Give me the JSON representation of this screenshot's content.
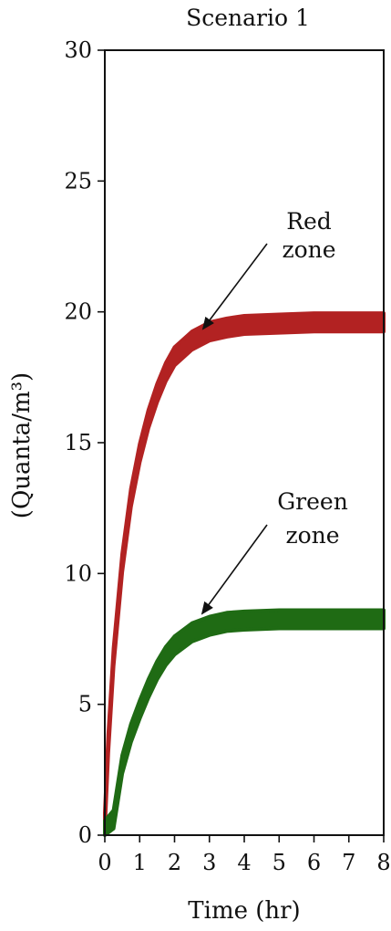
{
  "chart_data": {
    "type": "line",
    "title": "Scenario 1",
    "xlabel": "Time (hr)",
    "ylabel": "(Quanta/m³)",
    "xlim": [
      0,
      8
    ],
    "ylim": [
      0,
      30
    ],
    "x_ticks": [
      "0",
      "1",
      "2",
      "3",
      "4",
      "5",
      "6",
      "7",
      "8"
    ],
    "y_ticks": [
      "0",
      "5",
      "10",
      "15",
      "20",
      "25",
      "30"
    ],
    "grid": false,
    "series": [
      {
        "color": "#b22222",
        "x": [
          0,
          0.1,
          0.25,
          0.5,
          0.75,
          1.0,
          1.25,
          1.5,
          1.75,
          2.0,
          2.5,
          3.0,
          3.5,
          4.0,
          5.0,
          6.0,
          7.0,
          8.0
        ],
        "y": [
          0.5,
          3.5,
          6.8,
          10.4,
          12.9,
          14.6,
          15.9,
          16.9,
          17.7,
          18.3,
          18.9,
          19.25,
          19.4,
          19.5,
          19.55,
          19.6,
          19.6,
          19.6
        ],
        "band": 0.35
      },
      {
        "color": "#1f6b14",
        "x": [
          0,
          0.25,
          0.5,
          0.75,
          1.0,
          1.25,
          1.5,
          1.75,
          2.0,
          2.5,
          3.0,
          3.5,
          4.0,
          5.0,
          6.0,
          7.0,
          8.0
        ],
        "y": [
          0.2,
          0.6,
          2.7,
          3.9,
          4.8,
          5.6,
          6.3,
          6.85,
          7.25,
          7.75,
          8.0,
          8.15,
          8.2,
          8.25,
          8.25,
          8.25,
          8.25
        ],
        "band": 0.35
      }
    ],
    "annotations": [
      {
        "text_lines": [
          "Red",
          "zone"
        ],
        "target": {
          "x": 2.85,
          "y": 19.3
        }
      },
      {
        "text_lines": [
          "Green",
          "zone"
        ],
        "target": {
          "x": 2.8,
          "y": 8.4
        }
      }
    ]
  }
}
